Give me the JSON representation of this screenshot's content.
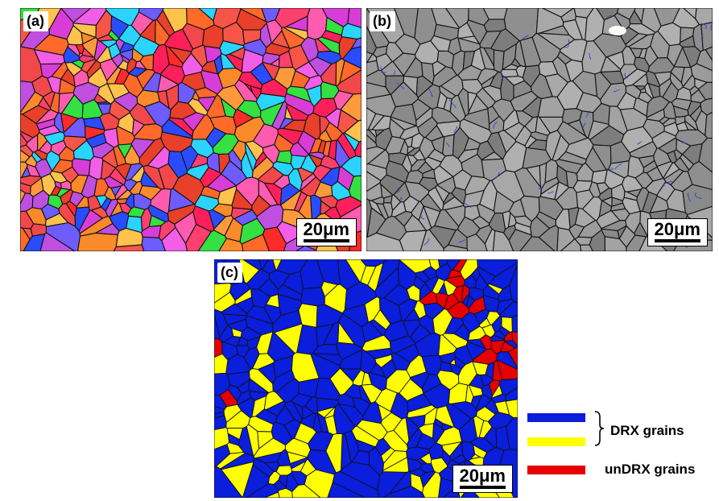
{
  "panels": [
    {
      "id": "a",
      "label": "(a)",
      "scalebar": "20μm"
    },
    {
      "id": "b",
      "label": "(b)",
      "scalebar": "20μm"
    },
    {
      "id": "c",
      "label": "(c)",
      "scalebar": "20μm"
    }
  ],
  "legend": {
    "drx_label": "DRX grains",
    "undrx_label": "unDRX grains",
    "colors": {
      "drx_blue": "#0a1edc",
      "drx_yellow": "#ffff00",
      "undrx_red": "#e60000"
    }
  },
  "map_colors": {
    "ipf": [
      "#ff2a2a",
      "#f7554a",
      "#ff3f6e",
      "#f2484c",
      "#fb8a2b",
      "#ff9a3c",
      "#ff6a2a",
      "#e8402a",
      "#ff5cb0",
      "#d93dd8",
      "#f25fe6",
      "#34e042",
      "#2ad4ff",
      "#2a4cff",
      "#6e5cff",
      "#ffc24d",
      "#ff1f5a",
      "#c04fe0"
    ],
    "gray": [
      "#8a8a8a",
      "#969696",
      "#a3a3a3",
      "#7d7d7d",
      "#b0b0b0",
      "#9c9c9c",
      "#8f8f8f",
      "#a8a8a8"
    ],
    "boundary": "#111111",
    "low_angle": "#2b3bd6"
  }
}
